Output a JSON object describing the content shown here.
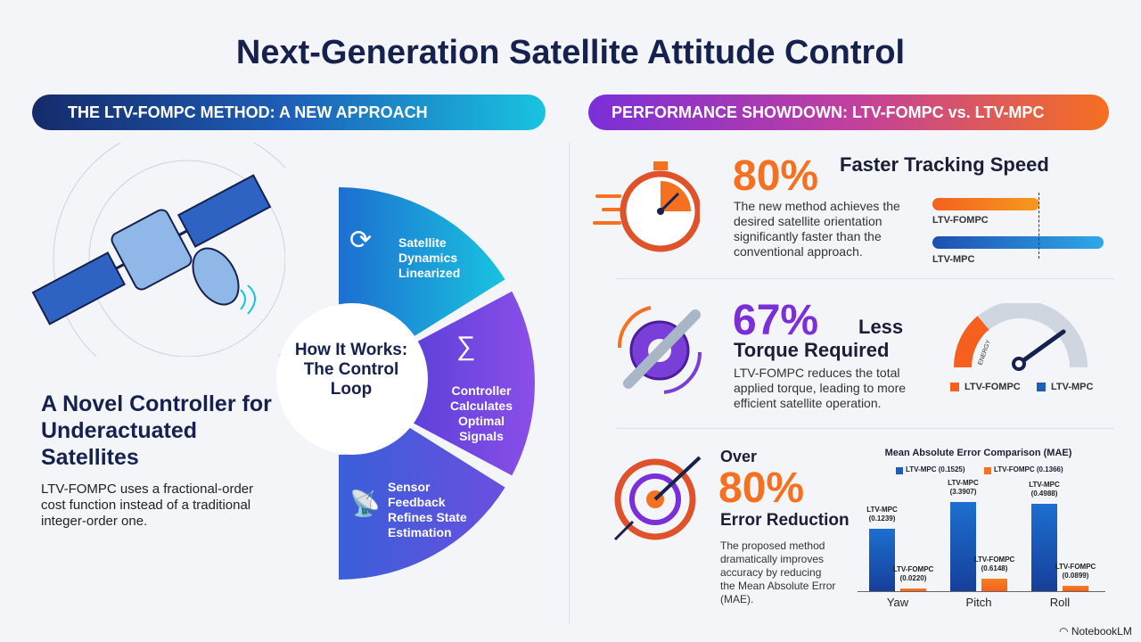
{
  "title": "Next-Generation Satellite Attitude Control",
  "left": {
    "banner": "THE LTV-FOMPC METHOD: A NEW APPROACH",
    "headline": "A Novel Controller for Underactuated Satellites",
    "description": "LTV-FOMPC uses a fractional-order cost function instead of a traditional integer-order one.",
    "loop_center": "How It Works: The Control Loop",
    "loop_steps": [
      {
        "label": "Satellite Dynamics Linearized",
        "icon": "satellite-cycle-icon"
      },
      {
        "label": "Controller Calculates Optimal Signals",
        "icon": "brain-math-icon"
      },
      {
        "label": "Sensor Feedback Refines State Estimation",
        "icon": "satellite-dish-icon"
      }
    ]
  },
  "right": {
    "banner": "PERFORMANCE SHOWDOWN: LTV-FOMPC vs. LTV-MPC",
    "speed": {
      "stat": "80%",
      "heading": "Faster Tracking Speed",
      "text": "The new method achieves the desired satellite orientation significantly faster than the conventional approach.",
      "bars": [
        {
          "label": "LTV-FOMPC",
          "color": "#f5701f",
          "relative": 0.63
        },
        {
          "label": "LTV-MPC",
          "color": "#1d5fb8",
          "relative": 1.0
        }
      ]
    },
    "torque": {
      "stat": "67%",
      "heading1": "Less",
      "heading2": "Torque Required",
      "text": "LTV-FOMPC reduces the total applied torque, leading to more efficient satellite operation.",
      "gauge_label": "ENERGY",
      "legend": [
        "LTV-FOMPC",
        "LTV-MPC"
      ]
    },
    "error": {
      "prefix": "Over",
      "stat": "80%",
      "heading": "Error Reduction",
      "text": "The proposed method dramatically improves accuracy by reducing the Mean Absolute Error (MAE)."
    }
  },
  "chart_data": {
    "type": "bar",
    "title": "Mean Absolute Error Comparison (MAE)",
    "categories": [
      "Yaw",
      "Pitch",
      "Roll"
    ],
    "series": [
      {
        "name": "LTV-MPC (0.1525)",
        "color": "#1d5fb8",
        "values": [
          0.1239,
          3.3907,
          0.4988
        ],
        "labels": [
          "LTV-MPC\n(0.1239)",
          "LTV-MPC\n(3.3907)",
          "LTV-MPC\n(0.4988)"
        ]
      },
      {
        "name": "LTV-FOMPC (0.1366)",
        "color": "#f5701f",
        "values": [
          0.022,
          0.6148,
          0.0899
        ],
        "labels": [
          "LTV-FOMPC\n(0.0220)",
          "LTV-FOMPC\n(0.6148)",
          "LTV-FOMPC\n(0.0899)"
        ]
      }
    ]
  },
  "footer": {
    "brand": "NotebookLM"
  }
}
